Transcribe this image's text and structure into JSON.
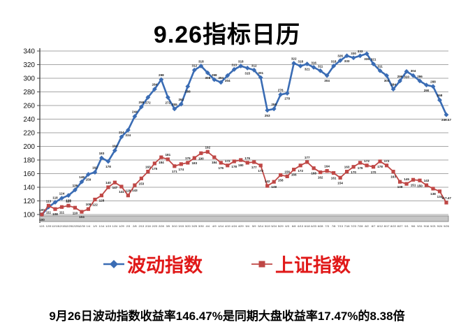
{
  "page": {
    "title": "9.26指标日历",
    "caption": "9月26日波动指数收益率146.47%是同期大盘收益率17.47%的8.38倍"
  },
  "colors": {
    "series_blue": "#3a6cb4",
    "series_red": "#bf4745",
    "legend_text": "#e01818",
    "gridline": "#a6a6a6",
    "axis": "#4a4a4a",
    "axis_band": "#c6c6c6",
    "axis_band_border": "#8c8c8c",
    "tick_text": "#333333",
    "data_label": "#1a1a1a"
  },
  "legend": [
    {
      "label": "波动指数",
      "marker": "diamond",
      "color": "#3a6cb4"
    },
    {
      "label": "上证指数",
      "marker": "square",
      "color": "#bf4745"
    }
  ],
  "chart_data": {
    "type": "line",
    "title": "9.26指标日历",
    "xlabel": "",
    "ylabel": "",
    "ylim": [
      100,
      340
    ],
    "ytick_step": 20,
    "grid": true,
    "legend_position": "bottom",
    "x": [
      "12/1",
      "12/5",
      "12/10",
      "12/15",
      "12/20",
      "12/25",
      "12/30",
      "1/4",
      "1/9",
      "1/14",
      "1/19",
      "1/24",
      "1/29",
      "2/3",
      "2/8",
      "2/13",
      "2/18",
      "2/23",
      "2/28",
      "3/5",
      "3/10",
      "3/15",
      "3/20",
      "3/25",
      "3/30",
      "4/4",
      "4/9",
      "4/14",
      "4/19",
      "4/24",
      "4/29",
      "5/4",
      "5/9",
      "5/14",
      "5/19",
      "5/24",
      "5/29",
      "6/3",
      "6/8",
      "6/13",
      "6/18",
      "6/23",
      "6/28",
      "7/3",
      "7/8",
      "7/13",
      "7/18",
      "7/23",
      "7/28",
      "8/2",
      "8/7",
      "8/12",
      "8/17",
      "8/22",
      "8/27",
      "9/1",
      "9/6",
      "9/11",
      "9/16",
      "9/21",
      "9/24",
      "9/26"
    ],
    "series": [
      {
        "name": "波动指数",
        "color": "#3a6cb4",
        "marker": "diamond",
        "final_value": 246.47,
        "values": [
          100,
          111,
          118,
          124,
          128,
          136,
          148,
          159,
          162,
          183,
          178,
          194,
          214,
          224,
          244,
          258,
          272,
          284,
          298,
          272,
          255,
          262,
          288,
          312,
          318,
          308,
          298,
          294,
          304,
          313,
          318,
          315,
          312,
          301,
          253,
          255,
          276,
          278,
          322,
          318,
          321,
          316,
          311,
          304,
          318,
          326,
          333,
          330,
          333,
          336,
          321,
          311,
          304,
          284,
          296,
          310,
          304,
          296,
          290,
          288,
          268,
          246.47
        ]
      },
      {
        "name": "上证指数",
        "color": "#bf4745",
        "marker": "square",
        "final_value": 117.47,
        "values": [
          100,
          113,
          108,
          111,
          113,
          110,
          104,
          108,
          122,
          128,
          140,
          147,
          141,
          128,
          143,
          153,
          163,
          175,
          184,
          181,
          171,
          174,
          176,
          183,
          190,
          192,
          184,
          176,
          172,
          178,
          180,
          176,
          177,
          172,
          142,
          148,
          158,
          156,
          166,
          172,
          177,
          168,
          162,
          164,
          161,
          154,
          163,
          170,
          176,
          172,
          170,
          178,
          172,
          163,
          148,
          145,
          151,
          150,
          143,
          138,
          134,
          117.47
        ]
      }
    ]
  }
}
